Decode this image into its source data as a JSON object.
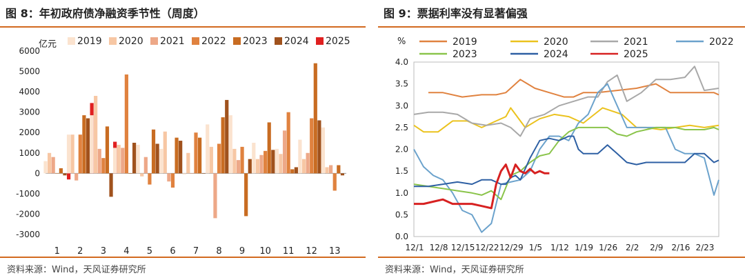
{
  "left": {
    "title": "图 8：年初政府债净融资季节性（周度）",
    "source": "资料来源：Wind，天风证券研究所",
    "unit_label": "亿元"
  },
  "right": {
    "title": "图 9：票据利率没有显著偏强",
    "source": "资料来源：Wind，天风证券研究所",
    "unit_label": "%"
  },
  "chart_data": [
    {
      "type": "bar",
      "title": "年初政府债净融资季节性（周度）",
      "ylabel": "亿元",
      "ylim": [
        -3000,
        6000
      ],
      "yticks": [
        -3000,
        -2000,
        -1000,
        0,
        1000,
        2000,
        3000,
        4000,
        5000,
        6000
      ],
      "categories": [
        "1",
        "2",
        "3",
        "4",
        "5",
        "6",
        "7",
        "8",
        "9",
        "10",
        "11",
        "12",
        "13"
      ],
      "legend_position": "top",
      "series": [
        {
          "name": "2019",
          "color": "#fbe3cf",
          "values": [
            600,
            1900,
            2850,
            1250,
            1400,
            1200,
            -50,
            2400,
            2850,
            1500,
            1200,
            1650,
            2250
          ]
        },
        {
          "name": "2020",
          "color": "#f7c7a4",
          "values": [
            1000,
            1900,
            3800,
            1400,
            -150,
            2050,
            1000,
            1300,
            1200,
            700,
            950,
            700,
            300
          ]
        },
        {
          "name": "2021",
          "color": "#eda888",
          "values": [
            800,
            -350,
            1200,
            1250,
            800,
            -400,
            0,
            -2200,
            650,
            900,
            2100,
            1000,
            400
          ]
        },
        {
          "name": "2022",
          "color": "#e0823f",
          "values": [
            0,
            1900,
            750,
            4850,
            -550,
            -700,
            2000,
            1450,
            1300,
            1100,
            3000,
            2700,
            -850
          ]
        },
        {
          "name": "2023",
          "color": "#c86c22",
          "values": [
            250,
            2850,
            2300,
            0,
            2150,
            1750,
            1750,
            2750,
            -2100,
            2500,
            200,
            5400,
            400
          ]
        },
        {
          "name": "2024",
          "color": "#a0521d",
          "values": [
            -100,
            2700,
            -1150,
            1500,
            1450,
            1600,
            0,
            3600,
            700,
            1150,
            300,
            2600,
            -100
          ]
        },
        {
          "name": "2025",
          "color": "#e02020",
          "values": [
            -300,
            3450,
            1550,
            null,
            null,
            null,
            null,
            null,
            null,
            null,
            null,
            null,
            null
          ]
        }
      ]
    },
    {
      "type": "line",
      "title": "票据利率没有显著偏强",
      "ylabel": "%",
      "ylim": [
        0.0,
        4.0
      ],
      "yticks": [
        0.0,
        0.5,
        1.0,
        1.5,
        2.0,
        2.5,
        3.0,
        3.5,
        4.0
      ],
      "xticklabels": [
        "12/1",
        "12/8",
        "12/15",
        "12/22",
        "12/29",
        "1/5",
        "1/12",
        "1/19",
        "1/26",
        "2/2",
        "2/9",
        "2/16",
        "2/23"
      ],
      "xlim": [
        0,
        63
      ],
      "legend_position": "top",
      "series": [
        {
          "name": "2019",
          "color": "#e0823f",
          "x": [
            3,
            6,
            10,
            14,
            17,
            19,
            22,
            25,
            28,
            31,
            33,
            35,
            38,
            42,
            46,
            50,
            53,
            56,
            59,
            62,
            63
          ],
          "y": [
            3.3,
            3.3,
            3.2,
            3.25,
            3.25,
            3.3,
            3.6,
            3.4,
            3.3,
            3.2,
            3.2,
            3.3,
            3.3,
            3.35,
            3.4,
            3.5,
            3.3,
            3.3,
            3.3,
            3.3,
            3.25
          ]
        },
        {
          "name": "2020",
          "color": "#ebc21d",
          "x": [
            0,
            2,
            5,
            8,
            11,
            14,
            17,
            19,
            20,
            23,
            26,
            29,
            32,
            35,
            39,
            43,
            46,
            48,
            51,
            54,
            57,
            60,
            63
          ],
          "y": [
            2.55,
            2.4,
            2.4,
            2.65,
            2.65,
            2.5,
            2.65,
            2.75,
            2.95,
            2.5,
            2.7,
            2.8,
            2.75,
            2.6,
            2.95,
            2.8,
            2.5,
            2.5,
            2.45,
            2.5,
            2.55,
            2.5,
            2.55
          ]
        },
        {
          "name": "2021",
          "color": "#a8a8a8",
          "x": [
            0,
            3,
            6,
            9,
            12,
            15,
            18,
            20,
            22,
            24,
            27,
            30,
            33,
            36,
            38,
            40,
            42,
            44,
            47,
            50,
            53,
            56,
            58,
            60,
            63
          ],
          "y": [
            2.8,
            2.85,
            2.85,
            2.8,
            2.6,
            2.55,
            2.6,
            2.5,
            2.3,
            2.7,
            2.8,
            3.0,
            3.1,
            3.2,
            3.2,
            3.55,
            3.7,
            3.1,
            3.3,
            3.6,
            3.6,
            3.65,
            3.9,
            3.35,
            3.4
          ]
        },
        {
          "name": "2022",
          "color": "#6ba2cc",
          "x": [
            0,
            2,
            4,
            6,
            8,
            10,
            12,
            14,
            16,
            18,
            20,
            22,
            24,
            26,
            28,
            30,
            32,
            34,
            36,
            38,
            40,
            42,
            44,
            46,
            48,
            50,
            52,
            54,
            56,
            58,
            60,
            62,
            63
          ],
          "y": [
            2.0,
            1.6,
            1.4,
            1.3,
            1.0,
            0.6,
            0.5,
            0.1,
            0.3,
            1.2,
            1.25,
            1.3,
            1.5,
            2.0,
            2.3,
            2.3,
            2.2,
            2.6,
            2.8,
            3.3,
            3.5,
            3.0,
            2.5,
            2.5,
            2.5,
            2.5,
            2.5,
            2.0,
            1.9,
            1.9,
            1.8,
            0.95,
            1.3
          ]
        },
        {
          "name": "2023",
          "color": "#8ac44a",
          "x": [
            0,
            3,
            6,
            9,
            12,
            14,
            16,
            18,
            20,
            22,
            24,
            26,
            28,
            30,
            32,
            34,
            36,
            38,
            40,
            42,
            44,
            46,
            48,
            50,
            52,
            54,
            56,
            58,
            60,
            62,
            63
          ],
          "y": [
            1.2,
            1.15,
            1.1,
            1.05,
            1.0,
            0.95,
            1.05,
            0.85,
            1.4,
            1.5,
            1.7,
            1.85,
            1.9,
            2.2,
            2.4,
            2.5,
            2.5,
            2.5,
            2.5,
            2.35,
            2.3,
            2.4,
            2.45,
            2.5,
            2.5,
            2.5,
            2.45,
            2.45,
            2.45,
            2.5,
            2.45
          ]
        },
        {
          "name": "2024",
          "color": "#2d5fa3",
          "x": [
            0,
            3,
            6,
            9,
            12,
            14,
            16,
            18,
            19,
            20,
            21,
            22,
            24,
            26,
            28,
            30,
            32,
            33,
            34,
            35,
            36,
            38,
            40,
            42,
            44,
            46,
            48,
            50,
            52,
            54,
            56,
            58,
            60,
            62,
            63
          ],
          "y": [
            1.15,
            1.15,
            1.2,
            1.25,
            1.2,
            1.3,
            1.3,
            1.2,
            1.2,
            1.35,
            1.4,
            1.3,
            1.8,
            2.2,
            2.25,
            2.2,
            2.3,
            2.3,
            2.0,
            1.9,
            1.9,
            1.9,
            2.1,
            1.9,
            1.7,
            1.65,
            1.7,
            1.7,
            1.7,
            1.7,
            1.7,
            1.9,
            1.9,
            1.7,
            1.75
          ]
        },
        {
          "name": "2025",
          "color": "#d72121",
          "x": [
            0,
            2,
            4,
            6,
            8,
            10,
            12,
            14,
            16,
            17,
            18,
            19,
            20,
            21,
            22,
            23,
            24,
            25,
            26,
            27,
            28
          ],
          "y": [
            0.75,
            0.75,
            0.8,
            0.85,
            0.75,
            0.75,
            0.75,
            0.7,
            0.65,
            1.2,
            1.5,
            1.65,
            1.35,
            1.65,
            1.5,
            1.45,
            1.55,
            1.45,
            1.5,
            1.45,
            1.45
          ]
        }
      ]
    }
  ]
}
